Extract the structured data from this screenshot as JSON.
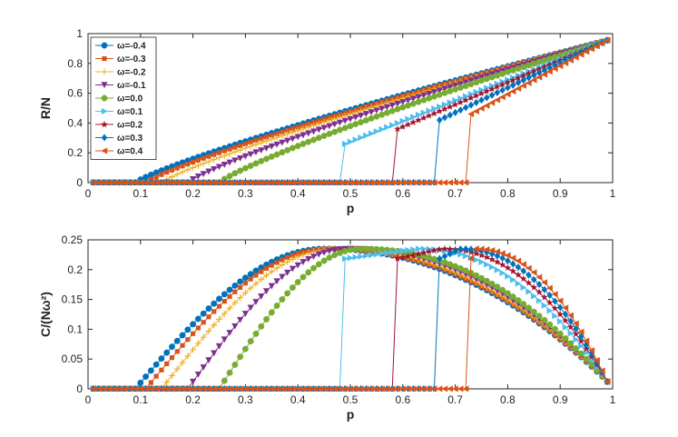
{
  "chart_data": [
    {
      "type": "line",
      "title": "",
      "xlabel": "p",
      "ylabel": "R/N",
      "xlim": [
        0,
        1
      ],
      "ylim": [
        0,
        1
      ],
      "xticks": [
        "0",
        "0.1",
        "0.2",
        "0.3",
        "0.4",
        "0.5",
        "0.6",
        "0.7",
        "0.8",
        "0.9",
        "1"
      ],
      "yticks": [
        "0",
        "0.2",
        "0.4",
        "0.6",
        "0.8",
        "1"
      ],
      "legend": "top-left",
      "x_step": 0.01,
      "series": [
        {
          "name": "ω=-0.4",
          "marker": "circle",
          "color": "#0072BD",
          "onset": 0.09,
          "jump_value": 0.0,
          "end_value": 0.955
        },
        {
          "name": "ω=-0.3",
          "marker": "square",
          "color": "#D95319",
          "onset": 0.11,
          "jump_value": 0.0,
          "end_value": 0.955
        },
        {
          "name": "ω=-0.2",
          "marker": "plus",
          "color": "#EDB120",
          "onset": 0.14,
          "jump_value": 0.0,
          "end_value": 0.955
        },
        {
          "name": "ω=-0.1",
          "marker": "triangle-down",
          "color": "#7E2F8E",
          "onset": 0.19,
          "jump_value": 0.0,
          "end_value": 0.955
        },
        {
          "name": "ω=0.0",
          "marker": "circle",
          "color": "#77AC30",
          "onset": 0.25,
          "jump_value": 0.0,
          "end_value": 0.955
        },
        {
          "name": "ω=0.1",
          "marker": "triangle-right",
          "color": "#4DBEEE",
          "onset": 0.49,
          "jump_value": 0.26,
          "end_value": 0.955
        },
        {
          "name": "ω=0.2",
          "marker": "star",
          "color": "#A2142F",
          "onset": 0.59,
          "jump_value": 0.36,
          "end_value": 0.955
        },
        {
          "name": "ω=0.3",
          "marker": "diamond",
          "color": "#0072BD",
          "onset": 0.67,
          "jump_value": 0.42,
          "end_value": 0.955
        },
        {
          "name": "ω=0.4",
          "marker": "triangle-left",
          "color": "#D95319",
          "onset": 0.73,
          "jump_value": 0.46,
          "end_value": 0.955
        }
      ]
    },
    {
      "type": "line",
      "title": "",
      "xlabel": "p",
      "ylabel": "C/(Nω²)",
      "xlim": [
        0,
        1
      ],
      "ylim": [
        0,
        0.25
      ],
      "xticks": [
        "0",
        "0.1",
        "0.2",
        "0.3",
        "0.4",
        "0.5",
        "0.6",
        "0.7",
        "0.8",
        "0.9",
        "1"
      ],
      "yticks": [
        "0",
        "0.05",
        "0.1",
        "0.15",
        "0.2",
        "0.25"
      ],
      "x_step": 0.01,
      "peak_value": 0.235,
      "end_value": 0.012,
      "series_ref": "same as chart 1"
    }
  ]
}
